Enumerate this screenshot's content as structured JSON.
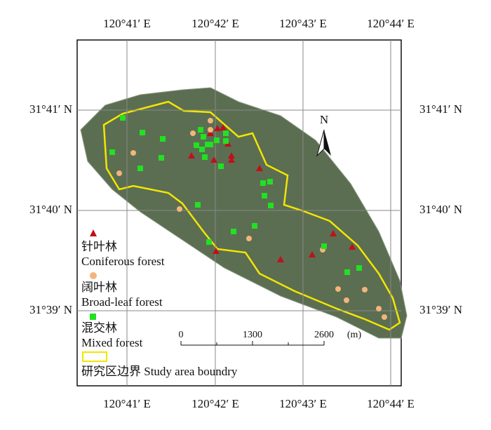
{
  "map": {
    "top_labels": [
      "120°41′ E",
      "120°42′ E",
      "120°43′ E",
      "120°44′ E"
    ],
    "bottom_labels": [
      "120°41′ E",
      "120°42′ E",
      "120°43′ E",
      "120°44′ E"
    ],
    "left_labels": [
      "31°41′ N",
      "31°40′ N",
      "31°39′ N"
    ],
    "right_labels": [
      "31°41′ N",
      "31°40′ N",
      "31°39′ N"
    ],
    "north": "N",
    "scale": {
      "labels": [
        "0",
        "1300",
        "2600"
      ],
      "unit": "(m)"
    },
    "legend": [
      {
        "label_cn": "针叶林",
        "label_en": "Coniferous forest"
      },
      {
        "label_cn": "阔叶林",
        "label_en": "Broad-leaf forest"
      },
      {
        "label_cn": "混交林",
        "label_en": "Mixed forest"
      },
      {
        "label": "研究区边界 Study area boundry"
      }
    ]
  }
}
